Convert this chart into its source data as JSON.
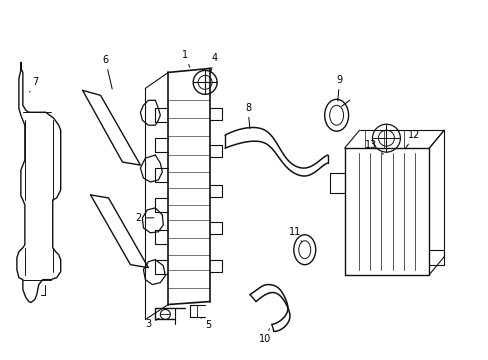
{
  "background_color": "#ffffff",
  "line_color": "#111111",
  "figsize": [
    4.89,
    3.6
  ],
  "dpi": 100
}
